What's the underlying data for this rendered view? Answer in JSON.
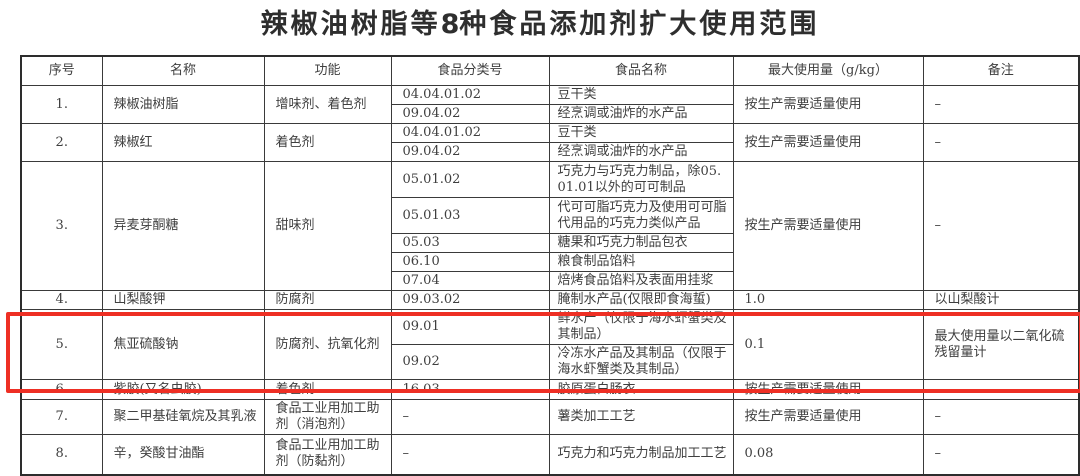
{
  "page": {
    "title_prefix": "辣椒油树脂等",
    "title_number": "8",
    "title_suffix": "种食品添加剂扩大使用范围"
  },
  "highlight": {
    "color": "#ee2f24",
    "target_row_no": "5."
  },
  "table": {
    "headers": [
      "序号",
      "名称",
      "功能",
      "食品分类号",
      "食品名称",
      "最大使用量（g/kg）",
      "备注"
    ],
    "rows": [
      {
        "no": "1.",
        "name": "辣椒油树脂",
        "function": "增味剂、着色剂",
        "entries": [
          {
            "code": "04.04.01.02",
            "food": "豆干类"
          },
          {
            "code": "09.04.02",
            "food": "经烹调或油炸的水产品"
          }
        ],
        "max_usage": "按生产需要适量使用",
        "remark": "–"
      },
      {
        "no": "2.",
        "name": "辣椒红",
        "function": "着色剂",
        "entries": [
          {
            "code": "04.04.01.02",
            "food": "豆干类"
          },
          {
            "code": "09.04.02",
            "food": "经烹调或油炸的水产品"
          }
        ],
        "max_usage": "按生产需要适量使用",
        "remark": "–"
      },
      {
        "no": "3.",
        "name": "异麦芽酮糖",
        "function": "甜味剂",
        "entries": [
          {
            "code": "05.01.02",
            "food": "巧克力与巧克力制品，除05.01.01以外的可可制品"
          },
          {
            "code": "05.01.03",
            "food": "代可可脂巧克力及使用可可脂代用品的巧克力类似产品"
          },
          {
            "code": "05.03",
            "food": "糖果和巧克力制品包衣"
          },
          {
            "code": "06.10",
            "food": "粮食制品馅料"
          },
          {
            "code": "07.04",
            "food": "焙烤食品馅料及表面用挂浆"
          }
        ],
        "max_usage": "按生产需要适量使用",
        "remark": "–"
      },
      {
        "no": "4.",
        "name": "山梨酸钾",
        "function": "防腐剂",
        "entries": [
          {
            "code": "09.03.02",
            "food": "腌制水产品(仅限即食海蜇)"
          }
        ],
        "max_usage": "1.0",
        "remark": "以山梨酸计"
      },
      {
        "no": "5.",
        "name": "焦亚硫酸钠",
        "function": "防腐剂、抗氧化剂",
        "entries": [
          {
            "code": "09.01",
            "food": "鲜水产（仅限于海水虾蟹类及其制品）"
          },
          {
            "code": "09.02",
            "food": "冷冻水产品及其制品（仅限于海水虾蟹类及其制品）"
          }
        ],
        "max_usage": "0.1",
        "remark": "最大使用量以二氧化硫残留量计"
      },
      {
        "no": "6.",
        "name": "紫胶(又名虫胶)",
        "function": "着色剂",
        "entries": [
          {
            "code": "16.03",
            "food": "胶原蛋白肠衣"
          }
        ],
        "max_usage": "按生产需要适量使用",
        "remark": "–"
      },
      {
        "no": "7.",
        "name": "聚二甲基硅氧烷及其乳液",
        "function": "食品工业用加工助剂（消泡剂）",
        "entries": [
          {
            "code": "–",
            "food": "薯类加工工艺"
          }
        ],
        "max_usage": "按生产需要适量使用",
        "remark": "–"
      },
      {
        "no": "8.",
        "name": "辛，癸酸甘油酯",
        "function": "食品工业用加工助剂（防黏剂）",
        "entries": [
          {
            "code": "–",
            "food": "巧克力和巧克力制品加工工艺"
          }
        ],
        "max_usage": "0.08",
        "remark": "–"
      }
    ]
  }
}
